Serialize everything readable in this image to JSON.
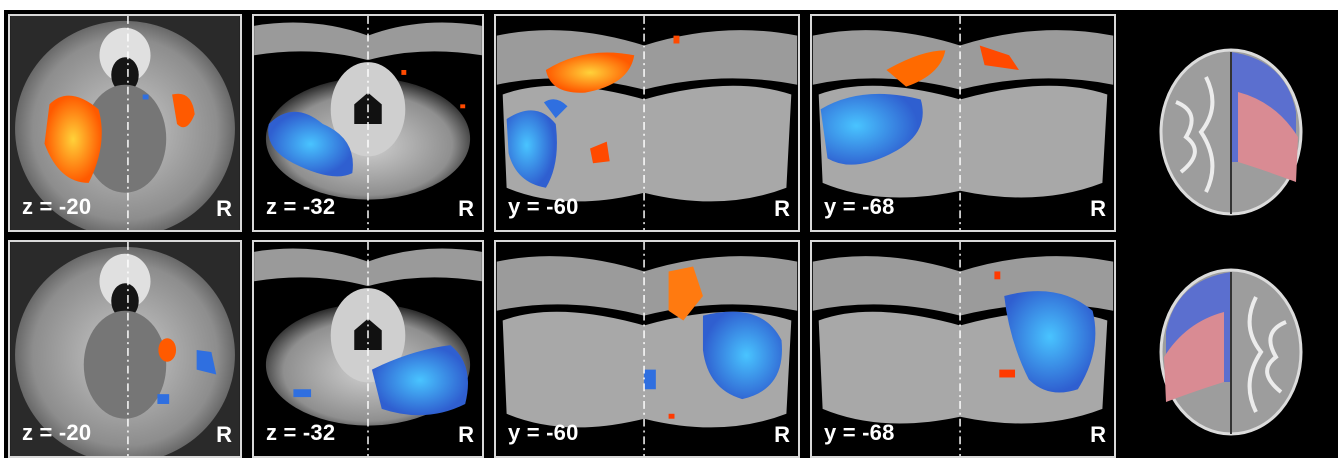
{
  "figure": {
    "rows": [
      {
        "id": "row-1",
        "panels": [
          {
            "coord": "z = -20",
            "side": "R",
            "view": "axial"
          },
          {
            "coord": "z = -32",
            "side": "R",
            "view": "axial"
          },
          {
            "coord": "y = -60",
            "side": "R",
            "view": "coronal"
          },
          {
            "coord": "y = -68",
            "side": "R",
            "view": "coronal"
          }
        ],
        "render_note": ""
      },
      {
        "id": "row-2",
        "panels": [
          {
            "coord": "z = -20",
            "side": "R",
            "view": "axial"
          },
          {
            "coord": "z = -32",
            "side": "R",
            "view": "axial"
          },
          {
            "coord": "y = -60",
            "side": "R",
            "view": "coronal"
          },
          {
            "coord": "y = -68",
            "side": "R",
            "view": "coronal"
          }
        ],
        "render_note": ""
      }
    ]
  },
  "colors": {
    "positive": "#ff6a00",
    "positive_hot": "#ffd23a",
    "negative": "#2f6fe0",
    "negative_hot": "#49c4ff",
    "brain": "#9a9a9a",
    "background": "#000000",
    "border": "#d9d9d9"
  }
}
